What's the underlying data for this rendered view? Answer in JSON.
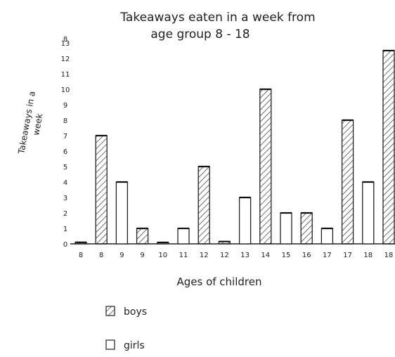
{
  "chart_data": {
    "type": "bar",
    "title": "Takeaways eaten in a week from age group 8 - 18",
    "title_lines": [
      "Takeaways eaten in a week from",
      "age group 8 - 18"
    ],
    "xlabel": "Ages of children",
    "ylabel": "Takeaways in a week",
    "ylabel_lines": [
      "Takeaways in a",
      "week"
    ],
    "y_ticks": [
      "0",
      "1",
      "2",
      "3",
      "4",
      "5",
      "6",
      "7",
      "8",
      "9",
      "10",
      "11",
      "12",
      "13"
    ],
    "y_top_label": "8",
    "ylim": [
      0,
      13
    ],
    "grid": false,
    "legend_position": "bottom-left",
    "legend": [
      {
        "name": "boys",
        "fill": "hatched"
      },
      {
        "name": "girls",
        "fill": "plain"
      }
    ],
    "colors": {
      "ink": "#222222",
      "background": "#ffffff"
    },
    "bars": [
      {
        "label": "8",
        "series": "boys",
        "value": 0.1
      },
      {
        "label": "8",
        "series": "boys",
        "value": 7
      },
      {
        "label": "9",
        "series": "girls",
        "value": 4
      },
      {
        "label": "9",
        "series": "boys",
        "value": 1
      },
      {
        "label": "10",
        "series": "girls",
        "value": 0.05
      },
      {
        "label": "11",
        "series": "girls",
        "value": 1
      },
      {
        "label": "12",
        "series": "boys",
        "value": 5
      },
      {
        "label": "12",
        "series": "boys",
        "value": 0.15
      },
      {
        "label": "13",
        "series": "girls",
        "value": 3
      },
      {
        "label": "14",
        "series": "boys",
        "value": 10
      },
      {
        "label": "15",
        "series": "girls",
        "value": 2
      },
      {
        "label": "16",
        "series": "boys",
        "value": 2
      },
      {
        "label": "17",
        "series": "girls",
        "value": 1
      },
      {
        "label": "17",
        "series": "boys",
        "value": 8
      },
      {
        "label": "18",
        "series": "girls",
        "value": 4
      },
      {
        "label": "18",
        "series": "boys",
        "value": 12.5
      }
    ]
  }
}
